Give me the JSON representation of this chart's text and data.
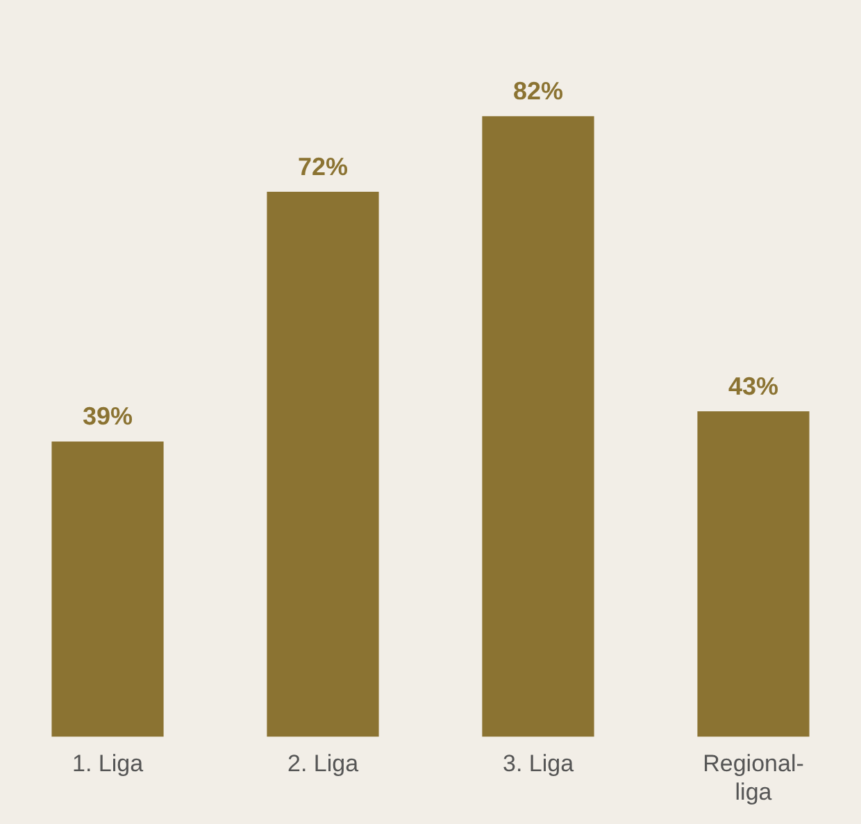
{
  "chart_data": {
    "type": "bar",
    "categories": [
      "1. Liga",
      "2. Liga",
      "3. Liga",
      "Regional-liga"
    ],
    "values": [
      39,
      72,
      82,
      43
    ],
    "value_labels": [
      "39%",
      "72%",
      "82%",
      "43%"
    ],
    "color": "#8b7332",
    "grid": false,
    "legend": false
  }
}
